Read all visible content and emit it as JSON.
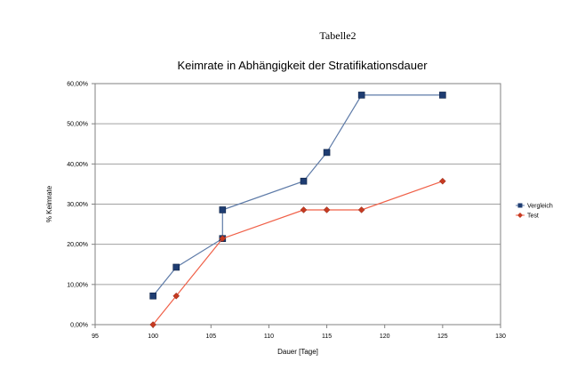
{
  "page": {
    "title": "Tabelle2"
  },
  "chart_data": {
    "type": "line",
    "title": "Keimrate in Abhängigkeit der Stratifikationsdauer",
    "xlabel": "Dauer [Tage]",
    "ylabel": "% Keimrate",
    "xlim": [
      95,
      130
    ],
    "ylim": [
      0,
      0.6
    ],
    "x_ticks": [
      "95",
      "100",
      "105",
      "110",
      "115",
      "120",
      "125",
      "130"
    ],
    "y_ticks": [
      "0,00%",
      "10,00%",
      "20,00%",
      "30,00%",
      "40,00%",
      "50,00%",
      "60,00%"
    ],
    "grid": "horizontal",
    "legend_position": "right",
    "series": [
      {
        "name": "Vergleich",
        "color": "#5e7ba8",
        "marker_color": "#1f3d72",
        "marker": "square",
        "points": [
          [
            100,
            0.0714
          ],
          [
            102,
            0.1429
          ],
          [
            106,
            0.2143
          ],
          [
            106,
            0.2857
          ],
          [
            113,
            0.3571
          ],
          [
            115,
            0.4286
          ],
          [
            118,
            0.5714
          ],
          [
            125,
            0.5714
          ]
        ]
      },
      {
        "name": "Test",
        "color": "#f06048",
        "marker_color": "#c63a21",
        "marker": "diamond",
        "points": [
          [
            100,
            0.0
          ],
          [
            102,
            0.0714
          ],
          [
            106,
            0.2143
          ],
          [
            113,
            0.2857
          ],
          [
            115,
            0.2857
          ],
          [
            118,
            0.2857
          ],
          [
            125,
            0.3571
          ]
        ]
      }
    ]
  }
}
